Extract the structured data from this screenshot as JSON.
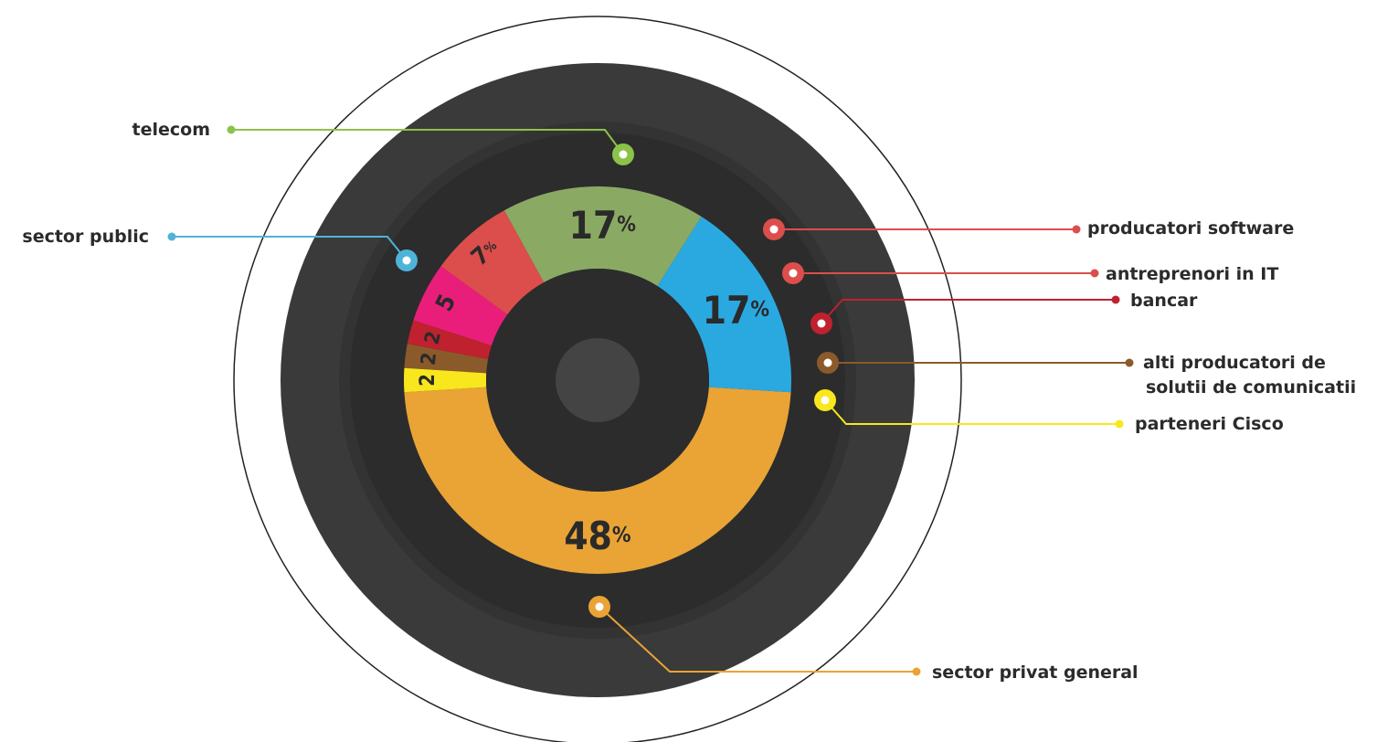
{
  "chart_data": {
    "type": "pie",
    "style": "donut",
    "unit": "%",
    "slices": [
      {
        "label": "sector privat general",
        "value": 48,
        "display": "48",
        "show_pct": true,
        "color": "#E9A435"
      },
      {
        "label": "sector public",
        "value": 17,
        "display": "17",
        "show_pct": true,
        "color": "#2AA9E0"
      },
      {
        "label": "telecom",
        "value": 17,
        "display": "17",
        "show_pct": true,
        "color": "#8AAA64"
      },
      {
        "label": "producatori software",
        "value": 7,
        "display": "7",
        "show_pct": true,
        "color": "#DC4E4B"
      },
      {
        "label": "antreprenori in IT",
        "value": 5,
        "display": "5",
        "show_pct": false,
        "color": "#E91E7B"
      },
      {
        "label": "bancar",
        "value": 2,
        "display": "2",
        "show_pct": false,
        "color": "#C0212E"
      },
      {
        "label": "alti producatori de solutii de comunicatii",
        "value": 2,
        "display": "2",
        "show_pct": false,
        "color": "#8B5A2B"
      },
      {
        "label": "parteneri Cisco",
        "value": 2,
        "display": "2",
        "show_pct": false,
        "color": "#F8E71C"
      }
    ]
  },
  "legend": [
    {
      "lines": [
        "telecom"
      ],
      "color": "#8BC34A",
      "side": "left"
    },
    {
      "lines": [
        "sector public"
      ],
      "color": "#4FB3D9",
      "side": "left"
    },
    {
      "lines": [
        "producatori software"
      ],
      "color": "#DC4E4B",
      "side": "right"
    },
    {
      "lines": [
        "antreprenori in IT"
      ],
      "color": "#DC4E4B",
      "side": "right"
    },
    {
      "lines": [
        "bancar"
      ],
      "color": "#C0212E",
      "side": "right"
    },
    {
      "lines": [
        "alti producatori de",
        "solutii de comunicatii"
      ],
      "color": "#8B5A2B",
      "side": "right"
    },
    {
      "lines": [
        "parteneri Cisco"
      ],
      "color": "#F8E71C",
      "side": "right"
    },
    {
      "lines": [
        "sector privat general"
      ],
      "color": "#E9A435",
      "side": "right"
    }
  ],
  "theme": {
    "ring_outer": "#3A3A3A",
    "ring_mid": "#333333",
    "ring_inner": "#2C2C2C",
    "hub": "#444444",
    "outline": "#222222",
    "background": "#FFFFFF"
  }
}
